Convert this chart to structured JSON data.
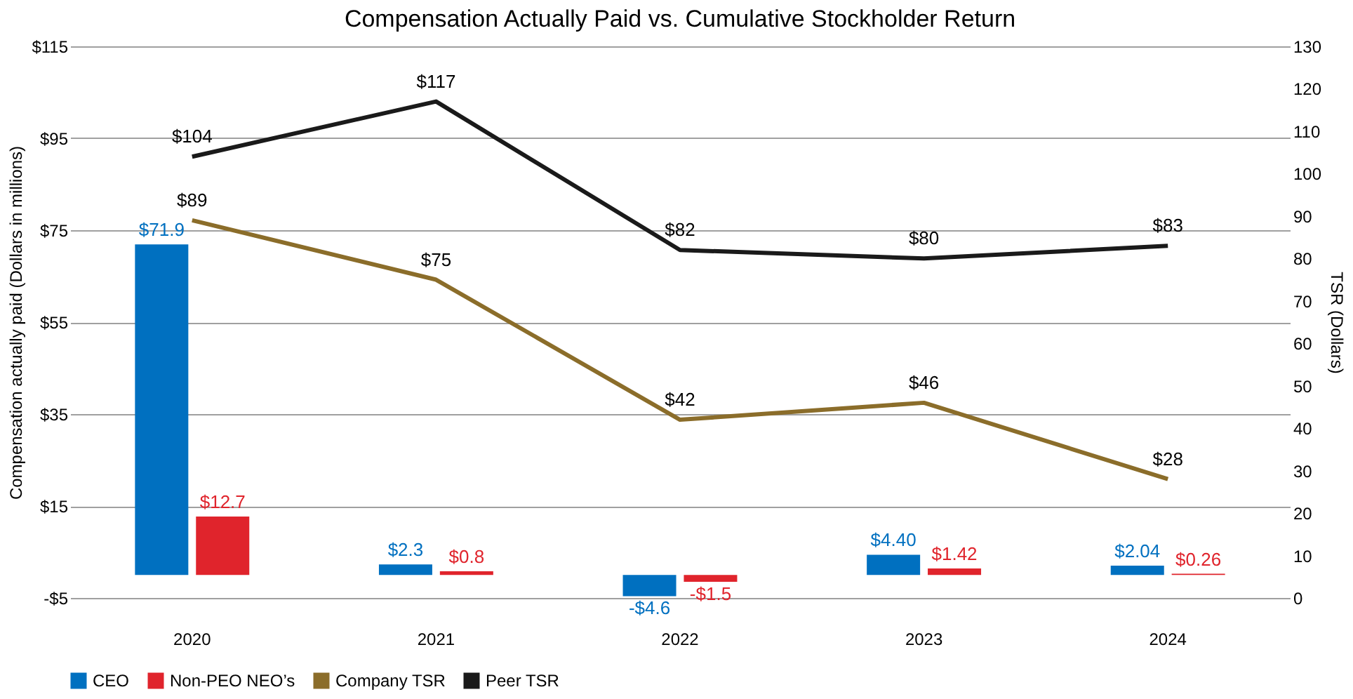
{
  "chart_data": {
    "type": "bar",
    "title": "Compensation Actually Paid vs. Cumulative Stockholder Return",
    "categories": [
      "2020",
      "2021",
      "2022",
      "2023",
      "2024"
    ],
    "ylabel": "Compensation actually paid (Dollars in millions)",
    "y2label": "TSR (Dollars)",
    "ylim": [
      -5,
      115
    ],
    "yticks": [
      {
        "value": -5,
        "label": "-$5"
      },
      {
        "value": 15,
        "label": "$15"
      },
      {
        "value": 35,
        "label": "$35"
      },
      {
        "value": 55,
        "label": "$55"
      },
      {
        "value": 75,
        "label": "$75"
      },
      {
        "value": 95,
        "label": "$95"
      },
      {
        "value": 115,
        "label": "$115"
      }
    ],
    "y2lim": [
      0,
      130
    ],
    "y2ticks": [
      0,
      10,
      20,
      30,
      40,
      50,
      60,
      70,
      80,
      90,
      100,
      110,
      120,
      130
    ],
    "series": [
      {
        "name": "CEO",
        "color": "#0070c0",
        "values": [
          71.9,
          2.3,
          -4.6,
          4.4,
          2.04
        ],
        "value_labels": [
          "$71.9",
          "$2.3",
          "-$4.6",
          "$4.40",
          "$2.04"
        ]
      },
      {
        "name": "Non-PEO NEO’s",
        "color": "#e0242c",
        "values": [
          12.7,
          0.8,
          -1.5,
          1.42,
          0.26
        ],
        "value_labels": [
          "$12.7",
          "$0.8",
          "-$1.5",
          "$1.42",
          "$0.26"
        ]
      },
      {
        "name": "Company TSR",
        "type": "line",
        "axis": "y2",
        "color": "#8b6d2a",
        "values": [
          89,
          75,
          42,
          46,
          28
        ],
        "value_labels": [
          "$89",
          "$75",
          "$42",
          "$46",
          "$28"
        ]
      },
      {
        "name": "Peer TSR",
        "type": "line",
        "axis": "y2",
        "color": "#1a1a1a",
        "values": [
          104,
          117,
          82,
          80,
          83
        ],
        "value_labels": [
          "$104",
          "$117",
          "$82",
          "$80",
          "$83"
        ]
      }
    ],
    "grid": "y",
    "legend": "bottom",
    "marker": "none",
    "line_style": "solid"
  }
}
